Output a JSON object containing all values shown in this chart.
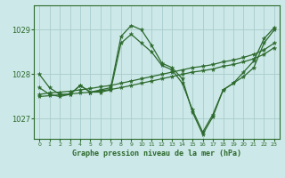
{
  "background_color": "#cce8e8",
  "grid_color": "#aacccc",
  "line_color": "#2d6a2d",
  "title": "Graphe pression niveau de la mer (hPa)",
  "xlim": [
    -0.5,
    23.5
  ],
  "ylim": [
    1026.55,
    1029.55
  ],
  "yticks": [
    1027,
    1028,
    1029
  ],
  "xticks": [
    0,
    1,
    2,
    3,
    4,
    5,
    6,
    7,
    8,
    9,
    10,
    11,
    12,
    13,
    14,
    15,
    16,
    17,
    18,
    19,
    20,
    21,
    22,
    23
  ],
  "series": [
    {
      "x": [
        0,
        1,
        2,
        3,
        4,
        5,
        6,
        7,
        8,
        9,
        10,
        11,
        12,
        13,
        14,
        15,
        16,
        17,
        18,
        19,
        20,
        21,
        22,
        23
      ],
      "y": [
        1028.0,
        1027.7,
        1027.55,
        1027.55,
        1027.75,
        1027.6,
        1027.65,
        1027.7,
        1028.85,
        1029.1,
        1029.0,
        1028.65,
        1028.25,
        1028.15,
        1027.9,
        1027.15,
        1026.65,
        1027.05,
        1027.65,
        1027.8,
        1028.05,
        1028.3,
        1028.8,
        1029.05
      ]
    },
    {
      "x": [
        0,
        1,
        2,
        3,
        4,
        5,
        6,
        7,
        8,
        9,
        10,
        11,
        12,
        13,
        14,
        15,
        16,
        17,
        18,
        19,
        20,
        21,
        22,
        23
      ],
      "y": [
        1027.7,
        1027.55,
        1027.5,
        1027.55,
        1027.75,
        1027.6,
        1027.6,
        1027.65,
        1028.7,
        1028.9,
        1028.7,
        1028.5,
        1028.2,
        1028.1,
        1027.8,
        1027.2,
        1026.7,
        1027.1,
        1027.65,
        1027.8,
        1027.95,
        1028.15,
        1028.7,
        1029.0
      ]
    },
    {
      "x": [
        0,
        1,
        2,
        3,
        4,
        5,
        6,
        7,
        8,
        9,
        10,
        11,
        12,
        13,
        14,
        15,
        16,
        17,
        18,
        19,
        20,
        21,
        22,
        23
      ],
      "y": [
        1027.55,
        1027.58,
        1027.6,
        1027.62,
        1027.65,
        1027.68,
        1027.72,
        1027.75,
        1027.8,
        1027.85,
        1027.9,
        1027.95,
        1028.0,
        1028.05,
        1028.1,
        1028.15,
        1028.18,
        1028.22,
        1028.28,
        1028.32,
        1028.38,
        1028.45,
        1028.55,
        1028.7
      ]
    },
    {
      "x": [
        0,
        1,
        2,
        3,
        4,
        5,
        6,
        7,
        8,
        9,
        10,
        11,
        12,
        13,
        14,
        15,
        16,
        17,
        18,
        19,
        20,
        21,
        22,
        23
      ],
      "y": [
        1027.5,
        1027.52,
        1027.54,
        1027.56,
        1027.58,
        1027.6,
        1027.63,
        1027.66,
        1027.7,
        1027.75,
        1027.8,
        1027.85,
        1027.9,
        1027.95,
        1028.0,
        1028.05,
        1028.08,
        1028.12,
        1028.18,
        1028.22,
        1028.28,
        1028.35,
        1028.45,
        1028.6
      ]
    }
  ]
}
